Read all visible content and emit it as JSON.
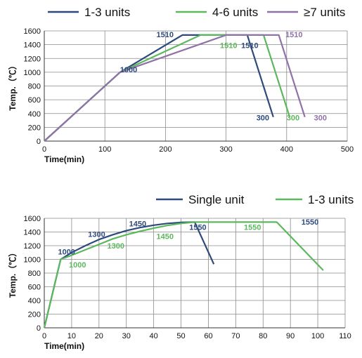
{
  "chart_data": [
    {
      "type": "line",
      "xlabel": "Time(min)",
      "ylabel": "Temp.（℃）",
      "xlim": [
        0,
        500
      ],
      "ylim": [
        0,
        1600
      ],
      "xticks": [
        "0",
        "100",
        "200",
        "300",
        "400",
        "500"
      ],
      "yticks": [
        "0",
        "200",
        "400",
        "600",
        "800",
        "1000",
        "1200",
        "1400",
        "1600"
      ],
      "grid": true,
      "legend": "top",
      "series": [
        {
          "name": "1-3 units",
          "color": "#2e4a7d",
          "x": [
            0,
            125,
            228,
            335,
            378
          ],
          "y": [
            0,
            1000,
            1540,
            1540,
            350
          ]
        },
        {
          "name": "4-6 units",
          "color": "#5cb85c",
          "x": [
            0,
            125,
            258,
            362,
            405
          ],
          "y": [
            0,
            1000,
            1540,
            1540,
            350
          ]
        },
        {
          "name": "≥7 units",
          "color": "#8e72a8",
          "x": [
            0,
            125,
            300,
            387,
            430
          ],
          "y": [
            0,
            1000,
            1540,
            1540,
            350
          ]
        }
      ],
      "annotations": [
        {
          "text": "1000",
          "x": 125,
          "y": 1000,
          "series": 0
        },
        {
          "text": "1510",
          "x": 185,
          "y": 1510,
          "series": 0
        },
        {
          "text": "1510",
          "x": 290,
          "y": 1350,
          "series": 1
        },
        {
          "text": "1510",
          "x": 325,
          "y": 1350,
          "series": 0
        },
        {
          "text": "1510",
          "x": 398,
          "y": 1510,
          "series": 2
        },
        {
          "text": "300",
          "x": 350,
          "y": 300,
          "series": 0
        },
        {
          "text": "300",
          "x": 400,
          "y": 300,
          "series": 1
        },
        {
          "text": "300",
          "x": 445,
          "y": 300,
          "series": 2
        }
      ]
    },
    {
      "type": "line",
      "xlabel": "Time(min)",
      "ylabel": "Temp.（℃）",
      "xlim": [
        0,
        110
      ],
      "ylim": [
        0,
        1600
      ],
      "xticks": [
        "0",
        "10",
        "20",
        "30",
        "40",
        "50",
        "60",
        "70",
        "80",
        "90",
        "100",
        "110"
      ],
      "yticks": [
        "0",
        "200",
        "400",
        "600",
        "800",
        "1000",
        "1200",
        "1400",
        "1600"
      ],
      "grid": true,
      "legend": "top",
      "series": [
        {
          "name": "Single unit",
          "color": "#2e4a7d",
          "x": [
            0,
            6,
            10,
            15,
            20,
            25,
            30,
            35,
            40,
            45,
            50,
            55,
            62
          ],
          "y": [
            0,
            1000,
            1100,
            1200,
            1290,
            1360,
            1420,
            1465,
            1500,
            1525,
            1540,
            1545,
            930
          ]
        },
        {
          "name": "1-3 units",
          "color": "#5cb85c",
          "x": [
            0,
            6,
            10,
            15,
            20,
            25,
            30,
            35,
            40,
            45,
            50,
            55,
            85,
            102
          ],
          "y": [
            0,
            1000,
            1060,
            1140,
            1220,
            1300,
            1360,
            1410,
            1455,
            1495,
            1525,
            1545,
            1545,
            840
          ]
        }
      ],
      "annotations": [
        {
          "text": "1000",
          "x": 5,
          "y": 1070,
          "series": 0
        },
        {
          "text": "1000",
          "x": 9,
          "y": 880,
          "series": 1
        },
        {
          "text": "1300",
          "x": 16,
          "y": 1330,
          "series": 0
        },
        {
          "text": "1300",
          "x": 23,
          "y": 1160,
          "series": 1
        },
        {
          "text": "1450",
          "x": 31,
          "y": 1480,
          "series": 0
        },
        {
          "text": "1450",
          "x": 41,
          "y": 1300,
          "series": 1
        },
        {
          "text": "1550",
          "x": 53,
          "y": 1430,
          "series": 0
        },
        {
          "text": "1550",
          "x": 73,
          "y": 1430,
          "series": 1
        },
        {
          "text": "1550",
          "x": 94,
          "y": 1510,
          "series": 0
        }
      ]
    }
  ]
}
